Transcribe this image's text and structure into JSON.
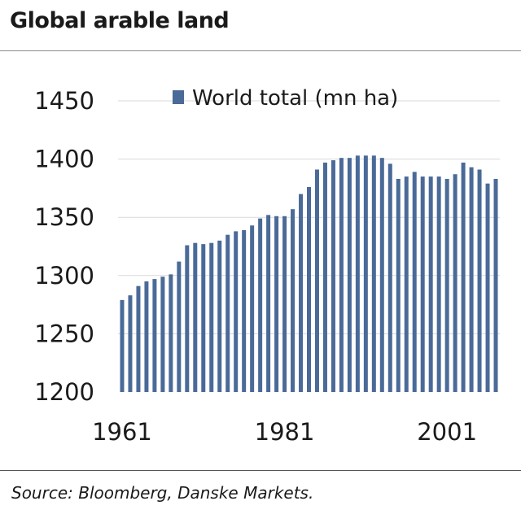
{
  "title": "Global arable land",
  "source": "Source: Bloomberg, Danske Markets.",
  "colors": {
    "bar": "#4a6a98",
    "grid": "#d9d9d9"
  },
  "chart_data": {
    "type": "bar",
    "title": "Global arable land",
    "xlabel": "",
    "ylabel": "",
    "ylim": [
      1200,
      1450
    ],
    "yticks": [
      1200,
      1250,
      1300,
      1350,
      1400,
      1450
    ],
    "xtick_labels": [
      "1961",
      "1981",
      "2001"
    ],
    "grid": true,
    "legend": "top-right",
    "series": [
      {
        "name": "World total (mn ha)",
        "color": "#4a6a98",
        "categories": [
          1961,
          1962,
          1963,
          1964,
          1965,
          1966,
          1967,
          1968,
          1969,
          1970,
          1971,
          1972,
          1973,
          1974,
          1975,
          1976,
          1977,
          1978,
          1979,
          1980,
          1981,
          1982,
          1983,
          1984,
          1985,
          1986,
          1987,
          1988,
          1989,
          1990,
          1991,
          1992,
          1993,
          1994,
          1995,
          1996,
          1997,
          1998,
          1999,
          2000,
          2001,
          2002,
          2003,
          2004,
          2005,
          2006,
          2007
        ],
        "values": [
          1279,
          1283,
          1291,
          1295,
          1297,
          1299,
          1301,
          1312,
          1326,
          1328,
          1327,
          1328,
          1330,
          1335,
          1338,
          1339,
          1343,
          1349,
          1352,
          1351,
          1351,
          1357,
          1370,
          1376,
          1391,
          1397,
          1399,
          1401,
          1401,
          1403,
          1403,
          1403,
          1401,
          1396,
          1383,
          1385,
          1389,
          1385,
          1385,
          1385,
          1383,
          1387,
          1397,
          1393,
          1391,
          1379,
          1383
        ]
      }
    ]
  }
}
